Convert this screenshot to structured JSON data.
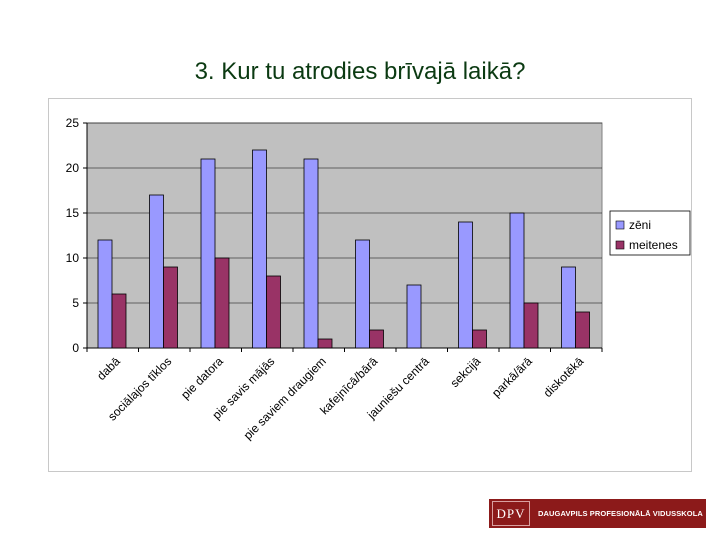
{
  "title": "3. Kur tu atrodies brīvajā laikā?",
  "logo": {
    "mark": "DPV",
    "text": "DAUGAVPILS PROFESIONĀLĀ VIDUSSKOLA"
  },
  "colors": {
    "zeni": "#9999ff",
    "meitenes": "#993366",
    "plot_bg": "#c0c0c0"
  },
  "chart_data": {
    "type": "bar",
    "categories": [
      "dabā",
      "sociālajos tīklos",
      "pie datora",
      "pie savis mājās",
      "pie saviem draugiem",
      "kafejnīcā/bārā",
      "jauniešu centrā",
      "sekcijā",
      "parkā/ārā",
      "diskotēkā"
    ],
    "series": [
      {
        "name": "zēni",
        "values": [
          12,
          17,
          21,
          22,
          21,
          12,
          7,
          14,
          15,
          9
        ]
      },
      {
        "name": "meitenes",
        "values": [
          6,
          9,
          10,
          8,
          1,
          2,
          0,
          2,
          5,
          4
        ]
      }
    ],
    "yticks": [
      "0",
      "5",
      "10",
      "15",
      "20",
      "25"
    ],
    "ylim": [
      0,
      25
    ],
    "grid": true,
    "legend": "right"
  }
}
